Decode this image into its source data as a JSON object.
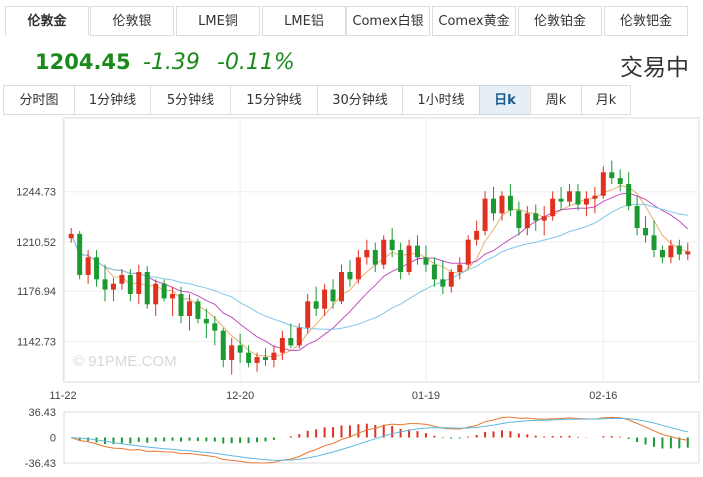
{
  "tabs": [
    {
      "label": "伦敦金",
      "active": true
    },
    {
      "label": "伦敦银",
      "active": false
    },
    {
      "label": "LME铜",
      "active": false
    },
    {
      "label": "LME铝",
      "active": false
    },
    {
      "label": "Comex白银",
      "active": false
    },
    {
      "label": "Comex黄金",
      "active": false
    },
    {
      "label": "伦敦铂金",
      "active": false
    },
    {
      "label": "伦敦钯金",
      "active": false
    }
  ],
  "quote": {
    "price": "1204.45",
    "change": "-1.39",
    "percent": "-0.11%",
    "status": "交易中"
  },
  "periods": [
    {
      "label": "分时图",
      "active": false
    },
    {
      "label": "1分钟线",
      "active": false
    },
    {
      "label": "5分钟线",
      "active": false
    },
    {
      "label": "15分钟线",
      "active": false
    },
    {
      "label": "30分钟线",
      "active": false
    },
    {
      "label": "1小时线",
      "active": false
    },
    {
      "label": "日k",
      "active": true
    },
    {
      "label": "周k",
      "active": false
    },
    {
      "label": "月k",
      "active": false
    }
  ],
  "watermark": "© 91PME.COM",
  "colors": {
    "up": "#e03020",
    "down": "#1a9a30",
    "ma5": "#e8b070",
    "ma10": "#c050c0",
    "ma20": "#80c8e8",
    "macd_dif": "#e87830",
    "macd_dea": "#60b8e0",
    "price_green": "#1a8a1a"
  },
  "chart_data": {
    "type": "candlestick",
    "y_ticks": [
      "1244.73",
      "1210.52",
      "1176.94",
      "1142.73"
    ],
    "x_ticks": [
      "11-22",
      "12-20",
      "01-19",
      "02-16"
    ],
    "ylim": [
      1115,
      1295
    ],
    "candles": [
      [
        1213,
        1220,
        1210,
        1216
      ],
      [
        1216,
        1218,
        1185,
        1188
      ],
      [
        1188,
        1205,
        1182,
        1200
      ],
      [
        1200,
        1205,
        1180,
        1185
      ],
      [
        1185,
        1195,
        1170,
        1178
      ],
      [
        1178,
        1186,
        1170,
        1182
      ],
      [
        1182,
        1192,
        1178,
        1188
      ],
      [
        1188,
        1192,
        1170,
        1175
      ],
      [
        1175,
        1195,
        1168,
        1190
      ],
      [
        1190,
        1194,
        1165,
        1168
      ],
      [
        1168,
        1185,
        1160,
        1182
      ],
      [
        1182,
        1185,
        1170,
        1172
      ],
      [
        1172,
        1180,
        1160,
        1175
      ],
      [
        1175,
        1180,
        1155,
        1160
      ],
      [
        1160,
        1175,
        1150,
        1170
      ],
      [
        1170,
        1172,
        1155,
        1158
      ],
      [
        1158,
        1165,
        1145,
        1155
      ],
      [
        1155,
        1160,
        1140,
        1150
      ],
      [
        1150,
        1152,
        1125,
        1130
      ],
      [
        1130,
        1145,
        1120,
        1140
      ],
      [
        1140,
        1148,
        1128,
        1135
      ],
      [
        1135,
        1140,
        1125,
        1128
      ],
      [
        1128,
        1135,
        1122,
        1132
      ],
      [
        1132,
        1138,
        1126,
        1130
      ],
      [
        1130,
        1140,
        1125,
        1135
      ],
      [
        1135,
        1150,
        1130,
        1145
      ],
      [
        1145,
        1155,
        1138,
        1140
      ],
      [
        1140,
        1155,
        1138,
        1152
      ],
      [
        1152,
        1175,
        1148,
        1170
      ],
      [
        1170,
        1180,
        1160,
        1165
      ],
      [
        1165,
        1182,
        1160,
        1178
      ],
      [
        1178,
        1185,
        1165,
        1170
      ],
      [
        1170,
        1195,
        1168,
        1190
      ],
      [
        1190,
        1198,
        1180,
        1185
      ],
      [
        1185,
        1205,
        1182,
        1200
      ],
      [
        1200,
        1212,
        1195,
        1205
      ],
      [
        1205,
        1210,
        1190,
        1195
      ],
      [
        1195,
        1215,
        1192,
        1212
      ],
      [
        1212,
        1220,
        1200,
        1205
      ],
      [
        1205,
        1210,
        1185,
        1190
      ],
      [
        1190,
        1212,
        1188,
        1208
      ],
      [
        1208,
        1215,
        1195,
        1200
      ],
      [
        1200,
        1208,
        1190,
        1195
      ],
      [
        1195,
        1200,
        1180,
        1185
      ],
      [
        1185,
        1198,
        1175,
        1180
      ],
      [
        1180,
        1192,
        1176,
        1190
      ],
      [
        1190,
        1200,
        1185,
        1195
      ],
      [
        1195,
        1215,
        1192,
        1212
      ],
      [
        1212,
        1225,
        1208,
        1218
      ],
      [
        1218,
        1245,
        1215,
        1240
      ],
      [
        1240,
        1248,
        1225,
        1230
      ],
      [
        1230,
        1245,
        1225,
        1242
      ],
      [
        1242,
        1250,
        1228,
        1232
      ],
      [
        1232,
        1238,
        1215,
        1220
      ],
      [
        1220,
        1235,
        1215,
        1230
      ],
      [
        1230,
        1236,
        1218,
        1225
      ],
      [
        1225,
        1235,
        1215,
        1228
      ],
      [
        1228,
        1245,
        1225,
        1240
      ],
      [
        1240,
        1248,
        1232,
        1238
      ],
      [
        1238,
        1250,
        1235,
        1245
      ],
      [
        1245,
        1250,
        1232,
        1236
      ],
      [
        1236,
        1245,
        1228,
        1240
      ],
      [
        1240,
        1248,
        1230,
        1242
      ],
      [
        1242,
        1262,
        1240,
        1258
      ],
      [
        1258,
        1266,
        1250,
        1254
      ],
      [
        1254,
        1260,
        1245,
        1250
      ],
      [
        1250,
        1258,
        1232,
        1235
      ],
      [
        1235,
        1242,
        1215,
        1220
      ],
      [
        1220,
        1228,
        1210,
        1215
      ],
      [
        1215,
        1225,
        1200,
        1205
      ],
      [
        1205,
        1208,
        1196,
        1200
      ],
      [
        1200,
        1212,
        1196,
        1208
      ],
      [
        1208,
        1212,
        1198,
        1202
      ],
      [
        1202,
        1210,
        1198,
        1204
      ]
    ],
    "macd_ylim": [
      -36.43,
      36.43
    ],
    "macd_ticks": [
      "36.43",
      "0",
      "-36.43"
    ]
  }
}
